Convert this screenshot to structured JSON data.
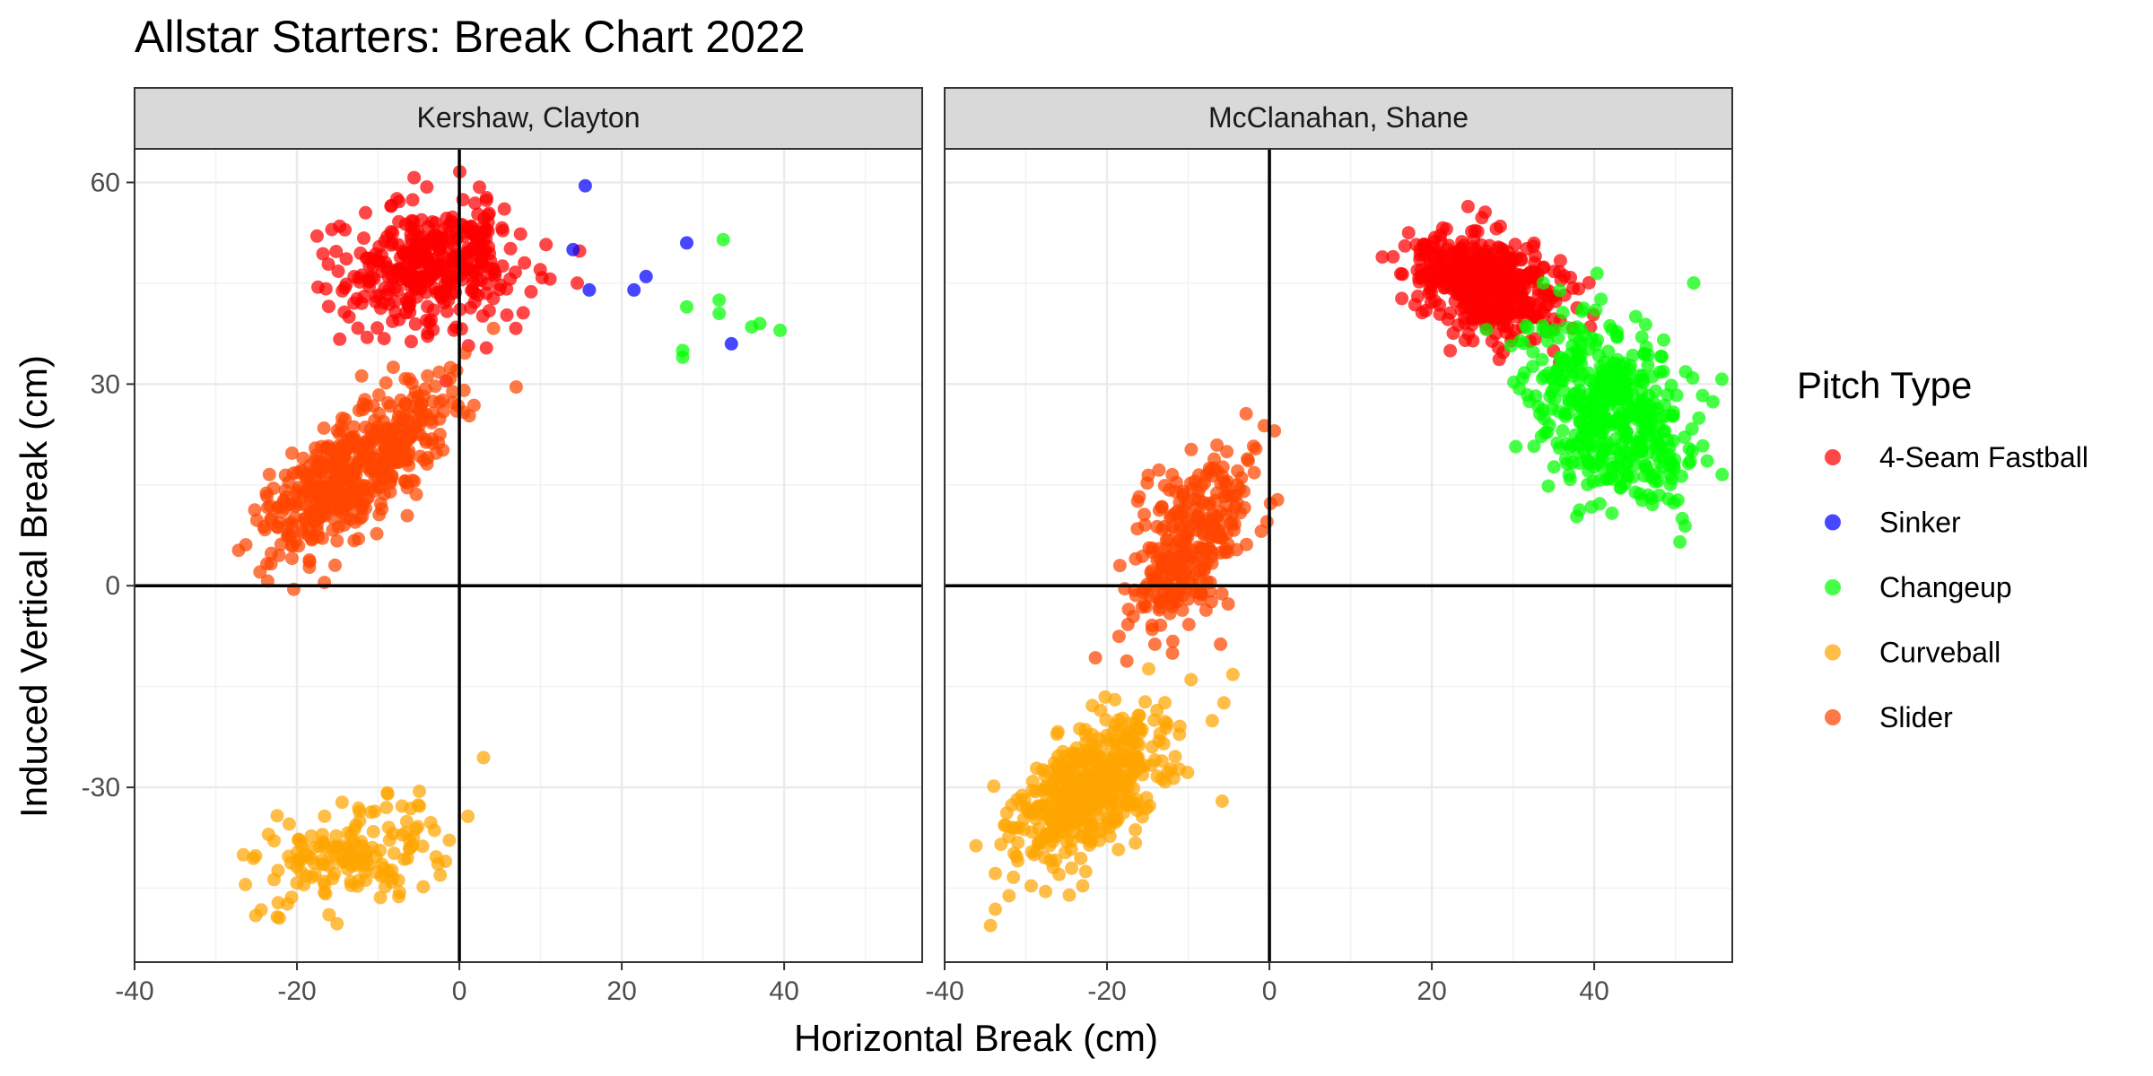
{
  "chart_data": {
    "type": "scatter",
    "title": "Allstar Starters: Break Chart 2022",
    "xlabel": "Horizontal Break (cm)",
    "ylabel": "Induced Vertical Break (cm)",
    "xlim": [
      -40,
      57
    ],
    "ylim": [
      -56,
      65
    ],
    "x_ticks": [
      -40,
      -20,
      0,
      20,
      40
    ],
    "x_tick_labels": [
      "-40",
      "-20",
      "0",
      "20",
      "40"
    ],
    "y_ticks": [
      -30,
      0,
      30,
      60
    ],
    "y_tick_labels": [
      "-30",
      "0",
      "30",
      "60"
    ],
    "grid": true,
    "reference_lines": {
      "x": 0,
      "y": 0
    },
    "legend": {
      "title": "Pitch Type",
      "position": "right",
      "items": [
        {
          "label": "4-Seam Fastball",
          "color": "#ff0000"
        },
        {
          "label": "Sinker",
          "color": "#0000ff"
        },
        {
          "label": "Changeup",
          "color": "#00ff00"
        },
        {
          "label": "Curveball",
          "color": "#ffa500"
        },
        {
          "label": "Slider",
          "color": "#ff4500"
        }
      ]
    },
    "panels": [
      {
        "label": "Kershaw, Clayton",
        "series": [
          {
            "name": "4-Seam Fastball",
            "color": "#ff0000",
            "cluster": {
              "cx": -3,
              "cy": 48,
              "sx": 5.5,
              "sy": 4.5,
              "rho": 0.1,
              "n": 380
            }
          },
          {
            "name": "Sinker",
            "color": "#0000ff",
            "points": [
              [
                15.5,
                59.5
              ],
              [
                14,
                50
              ],
              [
                16,
                44
              ],
              [
                21.5,
                44
              ],
              [
                23,
                46
              ],
              [
                28,
                51
              ],
              [
                33.5,
                36
              ]
            ]
          },
          {
            "name": "Changeup",
            "color": "#00ff00",
            "points": [
              [
                32.5,
                51.5
              ],
              [
                28,
                41.5
              ],
              [
                32,
                42.5
              ],
              [
                32,
                40.5
              ],
              [
                27.5,
                35
              ],
              [
                27.5,
                34
              ],
              [
                36,
                38.5
              ],
              [
                37,
                39
              ],
              [
                39.5,
                38
              ]
            ]
          },
          {
            "name": "Curveball",
            "color": "#ffa500",
            "cluster": {
              "cx": -13,
              "cy": -40,
              "sx": 6,
              "sy": 3.8,
              "rho": 0.35,
              "n": 160
            }
          },
          {
            "name": "Slider",
            "color": "#ff4500",
            "cluster": {
              "cx": -13,
              "cy": 17,
              "sx": 6,
              "sy": 6.5,
              "rho": 0.72,
              "n": 480
            }
          }
        ]
      },
      {
        "label": "McClanahan, Shane",
        "series": [
          {
            "name": "4-Seam Fastball",
            "color": "#ff0000",
            "cluster": {
              "cx": 27,
              "cy": 45,
              "sx": 4.5,
              "sy": 3.8,
              "rho": -0.35,
              "n": 520
            }
          },
          {
            "name": "Changeup",
            "color": "#00ff00",
            "cluster": {
              "cx": 42,
              "cy": 26,
              "sx": 5,
              "sy": 7,
              "rho": -0.3,
              "n": 460
            }
          },
          {
            "name": "Curveball",
            "color": "#ffa500",
            "cluster": {
              "cx": -22,
              "cy": -30,
              "sx": 5,
              "sy": 6,
              "rho": 0.6,
              "n": 460
            }
          },
          {
            "name": "Slider",
            "color": "#ff4500",
            "cluster": {
              "cx": -10,
              "cy": 6,
              "sx": 4,
              "sy": 7,
              "rho": 0.55,
              "n": 300
            }
          }
        ]
      }
    ]
  }
}
